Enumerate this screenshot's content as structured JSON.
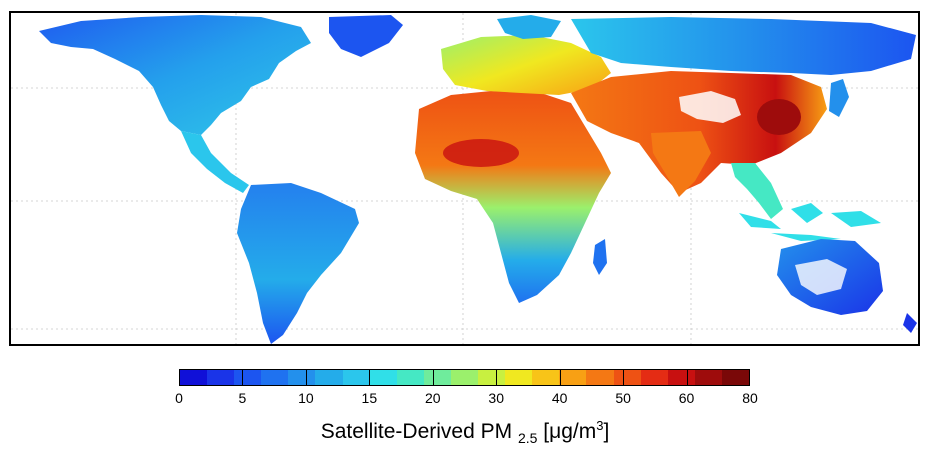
{
  "colorbar": {
    "ticks": [
      "0",
      "5",
      "10",
      "15",
      "20",
      "30",
      "40",
      "50",
      "60",
      "80"
    ],
    "colors": [
      "#1010d8",
      "#1a34e8",
      "#1c55f0",
      "#1f72f0",
      "#2390ec",
      "#24acea",
      "#2bc6ec",
      "#30dfe8",
      "#45e8c4",
      "#6fec9c",
      "#9bf06c",
      "#c8f040",
      "#f0e820",
      "#f8c418",
      "#f8a014",
      "#f47814",
      "#ee5214",
      "#e42c14",
      "#c81010",
      "#9e0c0c",
      "#7a0808"
    ],
    "title_main": "Satellite-Derived PM",
    "title_sub": "2.5",
    "title_unit_open": " [",
    "title_unit_mu": "μg/m",
    "title_unit_sup": "3",
    "title_unit_close": "]"
  },
  "map": {
    "background": "#ffffff",
    "gridline_color": "#bbbbbb"
  }
}
